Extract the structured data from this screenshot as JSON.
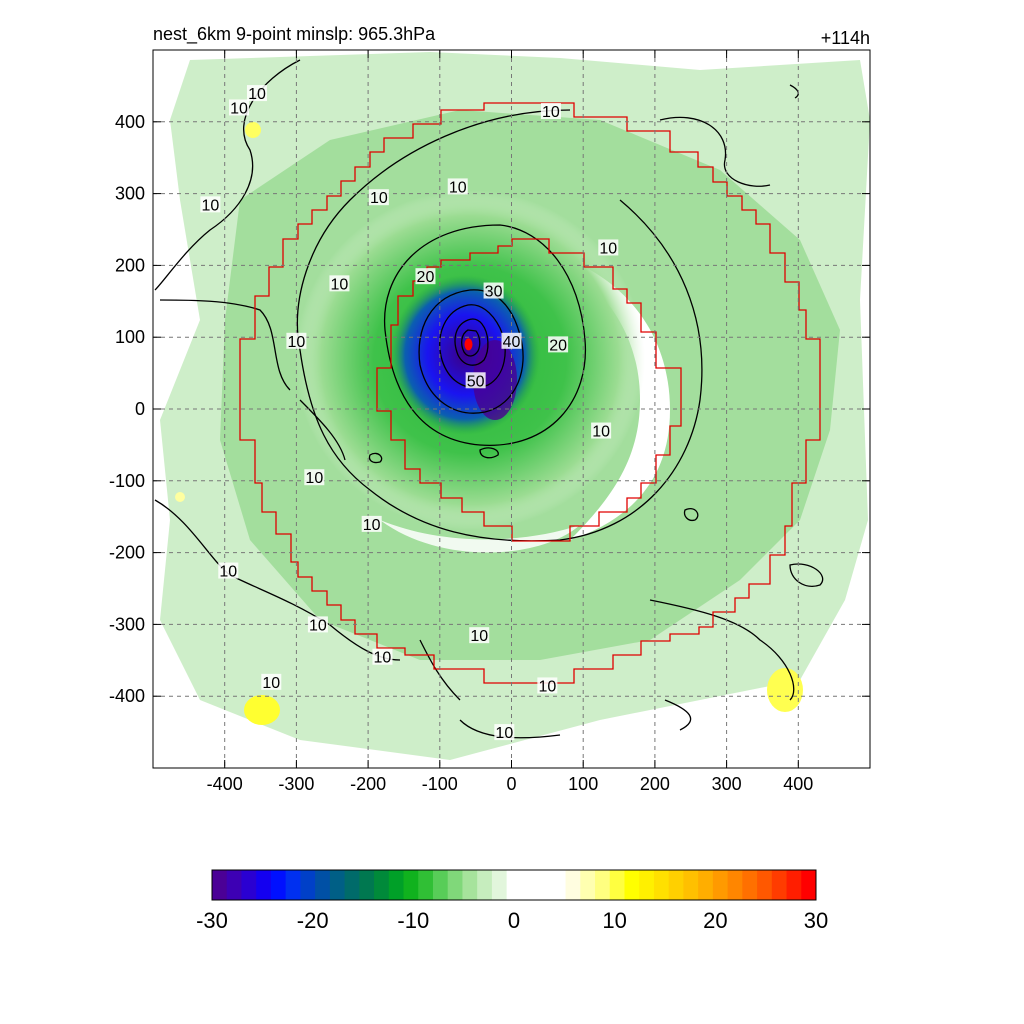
{
  "chart_data": {
    "type": "heatmap",
    "title_left": "nest_6km  9-point minslp: 965.3hPa",
    "title_right": "+114h",
    "x_range": [
      -500,
      500
    ],
    "y_range": [
      -500,
      500
    ],
    "x_ticks": [
      -400,
      -300,
      -200,
      -100,
      0,
      100,
      200,
      300,
      400
    ],
    "y_ticks": [
      -400,
      -300,
      -200,
      -100,
      0,
      100,
      200,
      300,
      400
    ],
    "grid": "dashed",
    "storm_center": {
      "x": -60,
      "y": 90
    },
    "contour_levels": [
      10,
      20,
      30,
      40,
      50
    ],
    "contour_labels": [
      {
        "text": "10",
        "x": -355,
        "y": 440
      },
      {
        "text": "10",
        "x": -380,
        "y": 420
      },
      {
        "text": "10",
        "x": -420,
        "y": 285
      },
      {
        "text": "10",
        "x": 55,
        "y": 415
      },
      {
        "text": "10",
        "x": -75,
        "y": 310
      },
      {
        "text": "10",
        "x": -185,
        "y": 295
      },
      {
        "text": "10",
        "x": -240,
        "y": 175
      },
      {
        "text": "10",
        "x": -300,
        "y": 95
      },
      {
        "text": "10",
        "x": 135,
        "y": 225
      },
      {
        "text": "20",
        "x": -120,
        "y": 185
      },
      {
        "text": "30",
        "x": -25,
        "y": 165
      },
      {
        "text": "20",
        "x": 65,
        "y": 90
      },
      {
        "text": "40",
        "x": 0,
        "y": 95
      },
      {
        "text": "50",
        "x": -50,
        "y": 40
      },
      {
        "text": "10",
        "x": 125,
        "y": -30
      },
      {
        "text": "10",
        "x": -275,
        "y": -95
      },
      {
        "text": "10",
        "x": -195,
        "y": -160
      },
      {
        "text": "10",
        "x": -395,
        "y": -225
      },
      {
        "text": "10",
        "x": -270,
        "y": -300
      },
      {
        "text": "10",
        "x": -45,
        "y": -315
      },
      {
        "text": "10",
        "x": -180,
        "y": -345
      },
      {
        "text": "10",
        "x": -335,
        "y": -380
      },
      {
        "text": "10",
        "x": 50,
        "y": -385
      },
      {
        "text": "10",
        "x": -10,
        "y": -450
      }
    ],
    "colorbar": {
      "min": -30,
      "max": 30,
      "tick_labels": [
        "-30",
        "-20",
        "-10",
        "0",
        "10",
        "20",
        "30"
      ],
      "colors": [
        "#4b0096",
        "#3d00b4",
        "#2a00d2",
        "#1400f0",
        "#0010ff",
        "#0030f0",
        "#0040c8",
        "#0050a5",
        "#005f86",
        "#006b6a",
        "#007850",
        "#008a3a",
        "#00a028",
        "#10b21e",
        "#30bf35",
        "#58cd58",
        "#80d87a",
        "#a6e39c",
        "#c6edbe",
        "#e2f6dc",
        "#ffffff",
        "#ffffff",
        "#ffffff",
        "#ffffff",
        "#fffde0",
        "#ffffb0",
        "#ffff80",
        "#ffff40",
        "#ffff00",
        "#fff000",
        "#ffe000",
        "#ffd000",
        "#ffc000",
        "#ffae00",
        "#ff9a00",
        "#ff8600",
        "#ff7000",
        "#ff5800",
        "#ff3c00",
        "#ff1e00",
        "#ff0000"
      ]
    }
  }
}
